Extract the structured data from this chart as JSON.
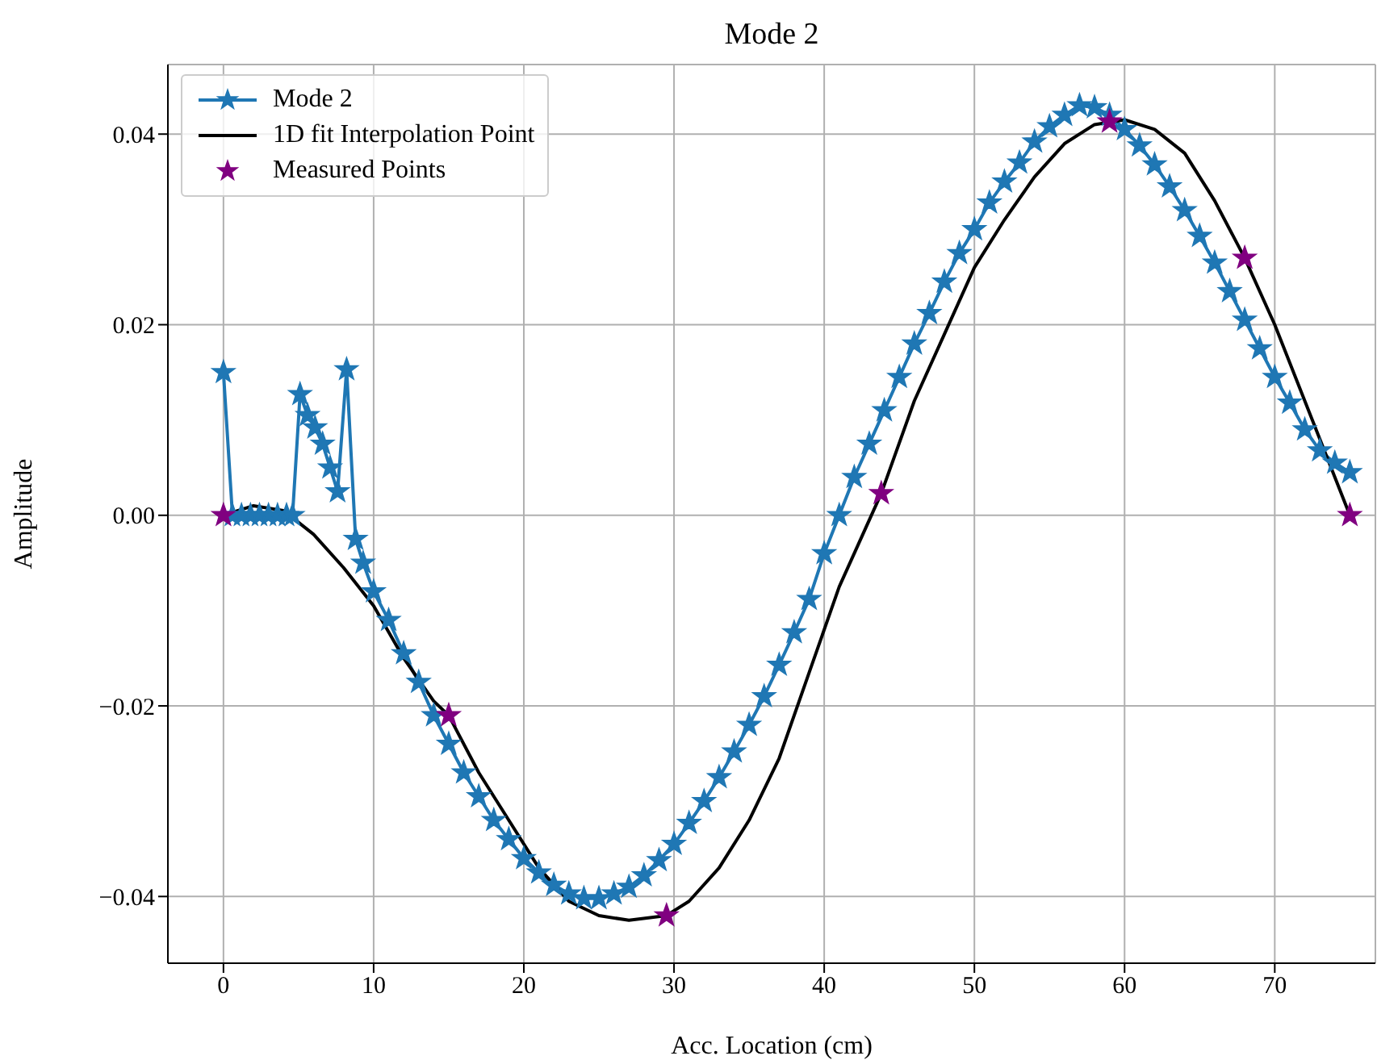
{
  "chart_data": {
    "type": "line",
    "title": "Mode 2",
    "xlabel": "Acc. Location (cm)",
    "ylabel": "Amplitude",
    "xlim": [
      -3.7,
      76.7
    ],
    "xticks": [
      0,
      10,
      20,
      30,
      40,
      50,
      60,
      70
    ],
    "ylim": [
      -0.047,
      0.0473
    ],
    "yticks": [
      {
        "value": -0.04,
        "label": "−0.04"
      },
      {
        "value": -0.02,
        "label": "−0.02"
      },
      {
        "value": 0,
        "label": "0.00"
      },
      {
        "value": 0.02,
        "label": "0.02"
      },
      {
        "value": 0.04,
        "label": "0.04"
      }
    ],
    "grid": true,
    "legend": "top left",
    "series": [
      {
        "name": "Mode 2",
        "marker": "star",
        "color": "#1f77b4",
        "x": [
          0,
          0.6,
          1.2,
          1.8,
          2.4,
          3,
          3.6,
          4.2,
          4.6,
          5.1,
          5.6,
          6.1,
          6.6,
          7.1,
          7.6,
          8.2,
          8.8,
          9.3,
          10,
          11,
          12,
          13,
          14,
          15,
          16,
          17,
          18,
          19,
          20,
          21,
          22,
          23,
          24,
          25,
          26,
          27,
          28,
          29,
          30,
          31,
          32,
          33,
          34,
          35,
          36,
          37,
          38,
          39,
          40,
          41,
          42,
          43,
          44,
          45,
          46,
          47,
          48,
          49,
          50,
          51,
          52,
          53,
          54,
          55,
          56,
          57,
          58,
          59,
          60,
          61,
          62,
          63,
          64,
          65,
          66,
          67,
          68,
          69,
          70,
          71,
          72,
          73,
          74,
          75
        ],
        "values": [
          0.015,
          0,
          0,
          0,
          0,
          0,
          0,
          0,
          0,
          0.0127,
          0.0105,
          0.0092,
          0.0075,
          0.005,
          0.0025,
          0.0153,
          -0.0025,
          -0.005,
          -0.008,
          -0.011,
          -0.0145,
          -0.0175,
          -0.021,
          -0.024,
          -0.027,
          -0.0295,
          -0.032,
          -0.034,
          -0.036,
          -0.0375,
          -0.0388,
          -0.0397,
          -0.0402,
          -0.0402,
          -0.0397,
          -0.039,
          -0.0378,
          -0.0362,
          -0.0345,
          -0.0323,
          -0.03,
          -0.0275,
          -0.0248,
          -0.022,
          -0.019,
          -0.0157,
          -0.0123,
          -0.0088,
          -0.004,
          0,
          0.004,
          0.0075,
          0.011,
          0.0145,
          0.018,
          0.0212,
          0.0245,
          0.0275,
          0.03,
          0.0328,
          0.035,
          0.037,
          0.0392,
          0.0408,
          0.042,
          0.043,
          0.0428,
          0.042,
          0.0405,
          0.0388,
          0.0368,
          0.0345,
          0.032,
          0.0293,
          0.0265,
          0.0235,
          0.0205,
          0.0175,
          0.0145,
          0.0118,
          0.009,
          0.0068,
          0.0055,
          0.0045
        ]
      },
      {
        "name": "1D fit Interpolation Point",
        "marker": "none",
        "color": "#000000",
        "x": [
          0,
          2,
          4,
          6,
          8,
          10,
          12,
          14,
          15,
          17,
          19,
          21,
          23,
          25,
          27,
          29.5,
          31,
          33,
          35,
          37,
          39,
          41,
          43.8,
          46,
          48,
          50,
          52,
          54,
          56,
          58,
          60,
          62,
          64,
          66,
          68,
          70,
          72,
          74,
          75
        ],
        "values": [
          0,
          0.001,
          0.0005,
          -0.002,
          -0.0055,
          -0.0095,
          -0.015,
          -0.0195,
          -0.021,
          -0.027,
          -0.032,
          -0.037,
          -0.0405,
          -0.042,
          -0.0425,
          -0.042,
          -0.0405,
          -0.037,
          -0.032,
          -0.0255,
          -0.0165,
          -0.0075,
          0.0023,
          0.012,
          0.019,
          0.026,
          0.031,
          0.0355,
          0.039,
          0.041,
          0.0415,
          0.0405,
          0.038,
          0.033,
          0.027,
          0.02,
          0.012,
          0.004,
          0
        ]
      },
      {
        "name": "Measured Points",
        "type": "scatter",
        "marker": "star",
        "color": "#800080",
        "x": [
          0,
          15,
          29.5,
          43.8,
          59,
          68,
          75
        ],
        "values": [
          0,
          -0.021,
          -0.042,
          0.0023,
          0.0413,
          0.027,
          0
        ]
      }
    ]
  }
}
